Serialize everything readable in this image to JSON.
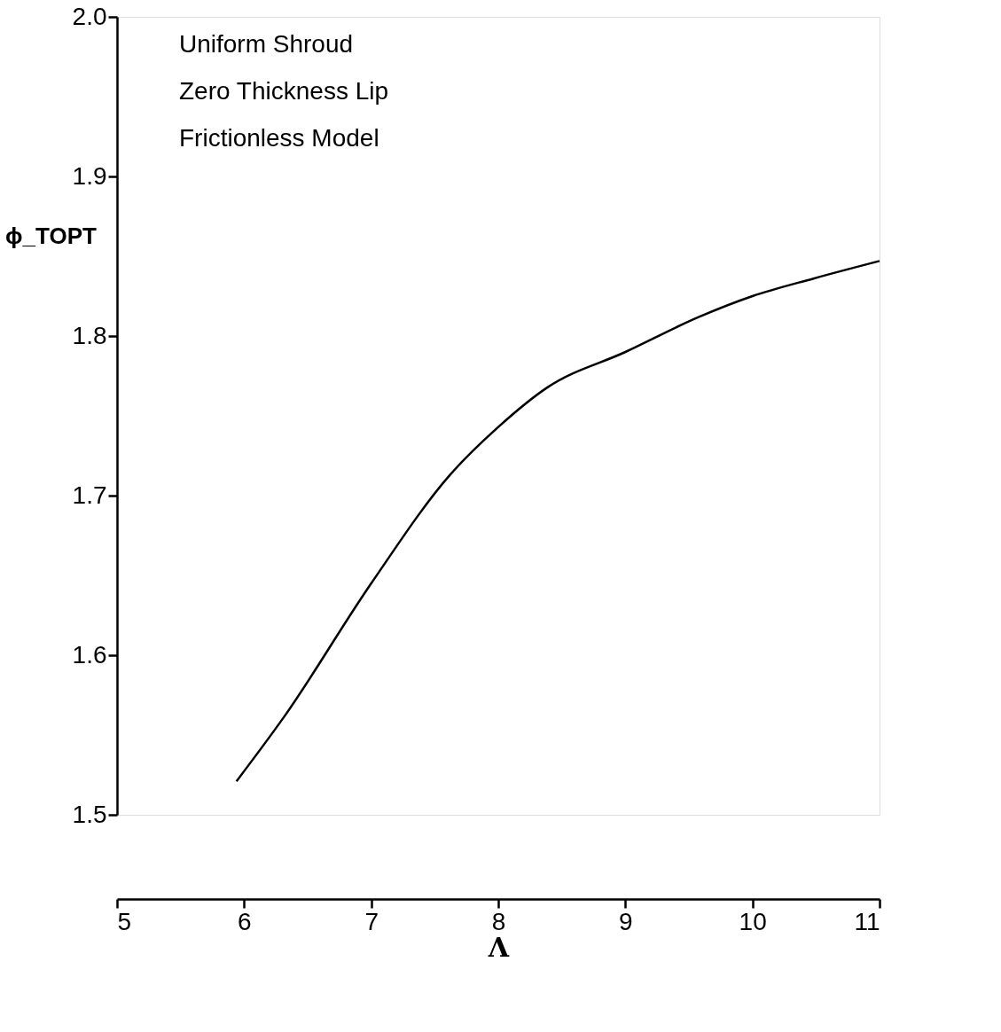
{
  "chart_data": {
    "type": "line",
    "xlabel": "Λ",
    "ylabel": "ϕ_TOPT",
    "annotations": [
      "Uniform Shroud",
      "Zero Thickness Lip",
      "Frictionless Model"
    ],
    "x": [
      5.94,
      6.32,
      7.0,
      7.62,
      8.0,
      8.39,
      9.0,
      9.58,
      10.0,
      10.48,
      11.0
    ],
    "series": [
      {
        "color": "#000000",
        "values": [
          1.521,
          1.562,
          1.645,
          1.713,
          1.743,
          1.768,
          1.79,
          1.812,
          1.825,
          1.836,
          1.847
        ]
      }
    ],
    "xlim": [
      5,
      11
    ],
    "ylim": [
      1.5,
      2.0
    ],
    "xticks": [
      5,
      6,
      7,
      8,
      9,
      10,
      11
    ],
    "yticks": [
      1.5,
      1.6,
      1.7,
      1.8,
      1.9,
      {
        "value": 2.0,
        "label": "2.0"
      }
    ],
    "grid": false,
    "legend": false,
    "marker": "none",
    "line_style": "solid"
  }
}
